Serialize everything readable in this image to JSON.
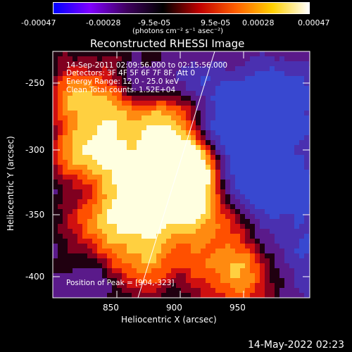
{
  "colorbar": {
    "tick_labels": [
      "-0.00047",
      "-0.00028",
      "-9.5e-05",
      "9.5e-05",
      "0.00028",
      "0.00047"
    ],
    "unit": "(photons cm⁻² s⁻¹ asec⁻²)",
    "colors": [
      "#0000ff",
      "#8000ff",
      "#400060",
      "#000000",
      "#c00000",
      "#ff6000",
      "#ffd000",
      "#ffffff"
    ]
  },
  "plot": {
    "title": "Reconstructed RHESSI Image",
    "time_range": "14-Sep-2011 02:09:56.000 to 02:15:56.000",
    "detectors": "Detectors: 3F 4F 5F 6F 7F 8F, Att 0",
    "energy": "Energy Range: 12.0 - 25.0 keV",
    "clean": "Clean     Total counts: 1.52E+04",
    "peak": "Position of Peak = [904,-323]"
  },
  "x_axis": {
    "label": "Heliocentric X (arcsec)",
    "ticks": [
      "850",
      "900",
      "950"
    ]
  },
  "y_axis": {
    "label": "Heliocentric Y (arcsec)",
    "ticks": [
      "-250",
      "-300",
      "-350",
      "-400"
    ]
  },
  "footer": {
    "date": "14-May-2022 02:23"
  }
}
